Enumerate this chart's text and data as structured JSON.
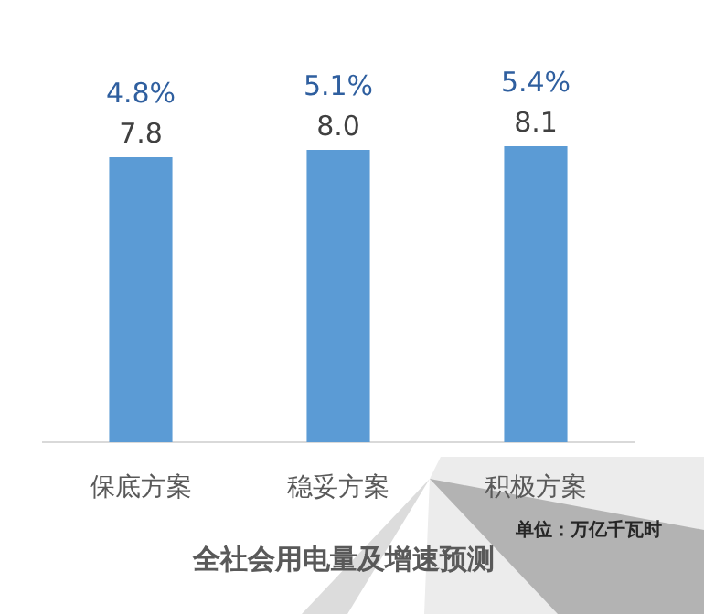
{
  "chart_data": {
    "type": "bar",
    "title": "全社会用电量及增速预测",
    "categories": [
      "保底方案",
      "稳妥方案",
      "积极方案"
    ],
    "values": [
      7.8,
      8.0,
      8.1
    ],
    "color": "#5b9bd5",
    "value_labels": [
      "7.8",
      "8.0",
      "8.1"
    ],
    "tick_labels": "x",
    "annotations": [
      {
        "text": "4.8%",
        "x": "保底方案",
        "y": 7.8
      },
      {
        "text": "5.1%",
        "x": "稳妥方案",
        "y": 8.0
      },
      {
        "text": "5.4%",
        "x": "积极方案",
        "y": 8.1
      },
      "单位：万亿千瓦时"
    ]
  }
}
